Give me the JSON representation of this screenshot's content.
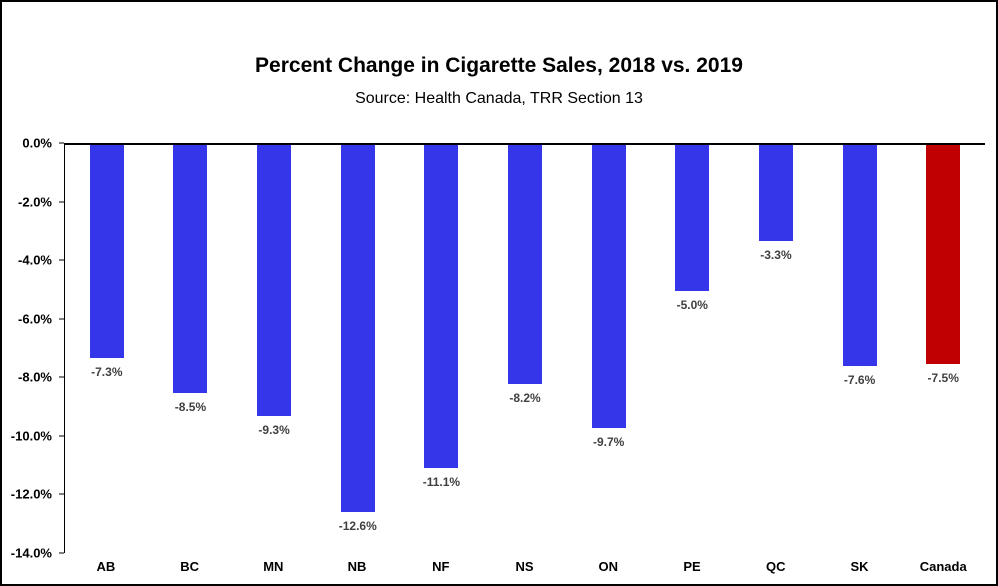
{
  "chart_data": {
    "type": "bar",
    "title": "Percent Change in Cigarette Sales, 2018 vs. 2019",
    "subtitle": "Source: Health Canada, TRR Section 13",
    "categories": [
      "AB",
      "BC",
      "MN",
      "NB",
      "NF",
      "NS",
      "ON",
      "PE",
      "QC",
      "SK",
      "Canada"
    ],
    "values": [
      -7.3,
      -8.5,
      -9.3,
      -12.6,
      -11.1,
      -8.2,
      -9.7,
      -5.0,
      -3.3,
      -7.6,
      -7.5
    ],
    "data_labels": [
      "-7.3%",
      "-8.5%",
      "-9.3%",
      "-12.6%",
      "-11.1%",
      "-8.2%",
      "-9.7%",
      "-5.0%",
      "-3.3%",
      "-7.6%",
      "-7.5%"
    ],
    "y_ticks": [
      "0.0%",
      "-2.0%",
      "-4.0%",
      "-6.0%",
      "-8.0%",
      "-10.0%",
      "-12.0%",
      "-14.0%"
    ],
    "ylim": [
      0,
      -14
    ],
    "xlabel": "",
    "ylabel": "",
    "grid": false,
    "legend": false,
    "bar_color": "#3535EA",
    "highlight_color": "#C00000",
    "highlight_category": "Canada"
  }
}
